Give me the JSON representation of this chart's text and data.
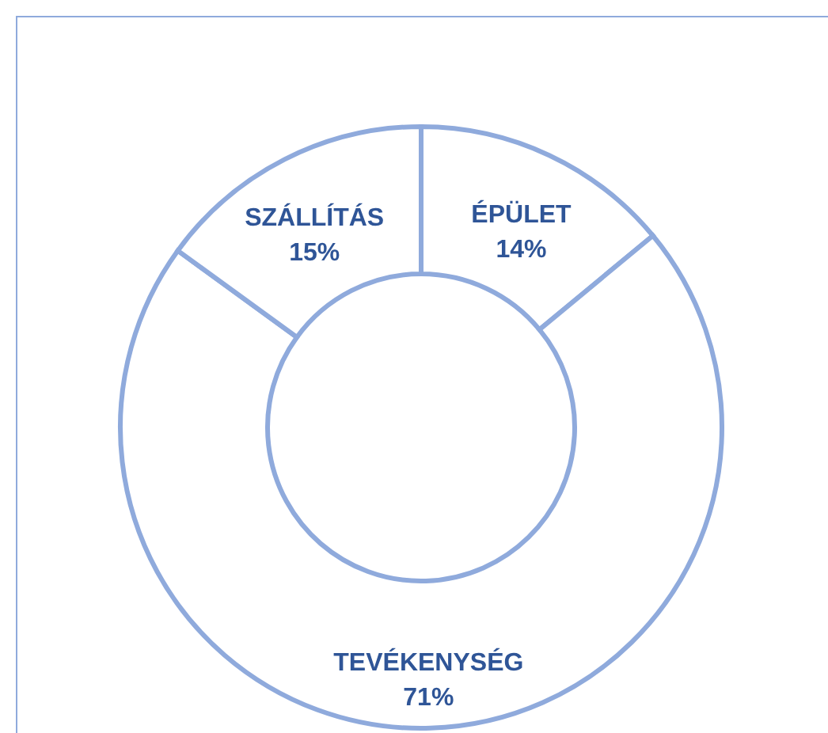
{
  "chart_data": {
    "type": "donut",
    "categories": [
      "ÉPÜLET",
      "TEVÉKENYSÉG",
      "SZÁLLÍTÁS"
    ],
    "values": [
      14,
      71,
      15
    ],
    "value_labels": [
      "14%",
      "71%",
      "15%"
    ],
    "colors": [
      "#ffffff",
      "#ffffff",
      "#ffffff"
    ]
  }
}
